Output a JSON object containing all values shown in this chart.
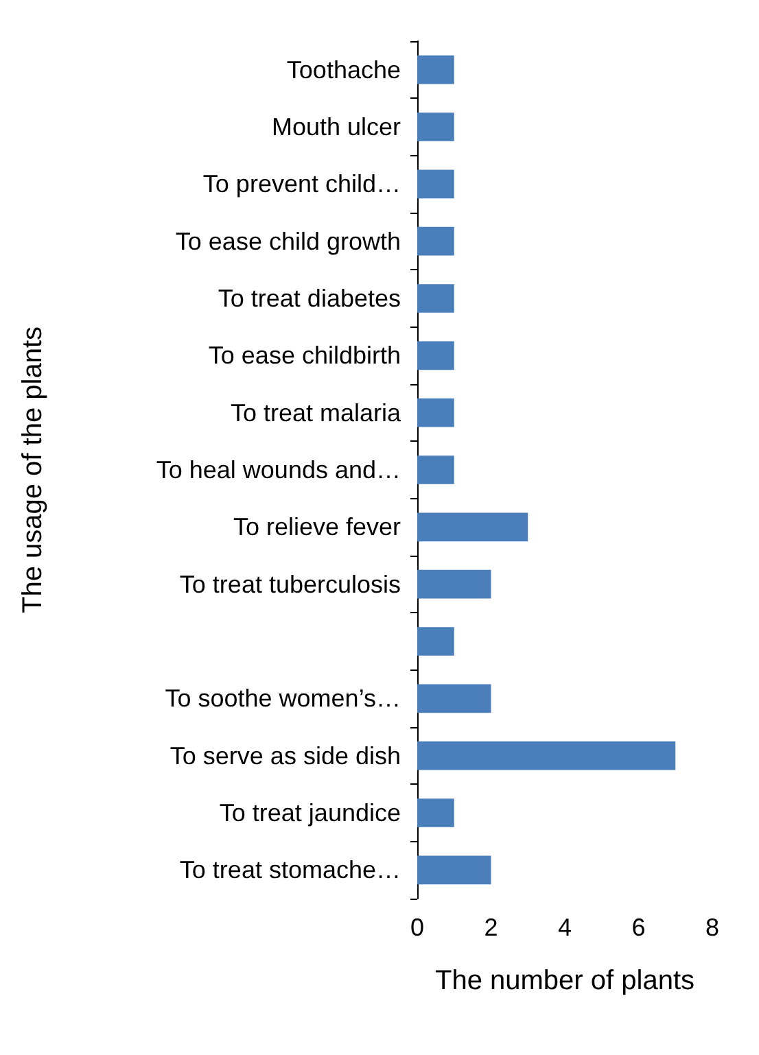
{
  "chart_data": {
    "type": "bar",
    "orientation": "horizontal",
    "xlabel": "The number of plants",
    "ylabel": "The usage of the plants",
    "categories": [
      "Toothache",
      "Mouth ulcer",
      "To prevent child…",
      "To ease child growth",
      "To treat diabetes",
      "To ease childbirth",
      "To treat malaria",
      "To heal wounds and…",
      "To relieve fever",
      "To treat tuberculosis",
      null,
      "To soothe women’s…",
      "To serve as side dish",
      "To treat jaundice",
      "To treat stomache…"
    ],
    "values": [
      1,
      1,
      1,
      1,
      1,
      1,
      1,
      1,
      3,
      2,
      1,
      2,
      7,
      1,
      2
    ],
    "color": "#4a7ebb",
    "xlim": [
      0,
      8
    ],
    "xticks": [
      0,
      2,
      4,
      6,
      8
    ],
    "grid": false
  }
}
